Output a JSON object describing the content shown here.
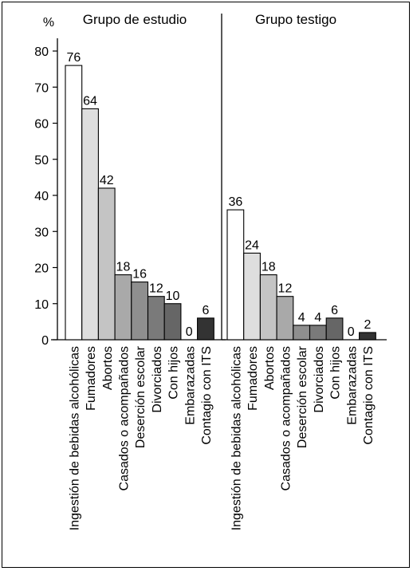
{
  "chart_data": {
    "type": "bar",
    "ylabel": "%",
    "ylim": [
      0,
      80
    ],
    "yticks": [
      0,
      10,
      20,
      30,
      40,
      50,
      60,
      70,
      80
    ],
    "grid": false,
    "categories": [
      "Ingestión de bebidas alcohólicas",
      "Fumadores",
      "Abortos",
      "Casados o acompañados",
      "Deserción escolar",
      "Divorciados",
      "Con hijos",
      "Embarazadas",
      "Contagio con ITS"
    ],
    "category_colors": [
      "#ffffff",
      "#dedede",
      "#c4c4c4",
      "#a9a9a9",
      "#8f8f8f",
      "#7a7a7a",
      "#666666",
      "#4d4d4d",
      "#333333"
    ],
    "panels": [
      {
        "title": "Grupo de estudio",
        "values": [
          76,
          64,
          42,
          18,
          16,
          12,
          10,
          0,
          6
        ]
      },
      {
        "title": "Grupo testigo",
        "values": [
          36,
          24,
          18,
          12,
          4,
          4,
          6,
          0,
          2
        ]
      }
    ]
  }
}
